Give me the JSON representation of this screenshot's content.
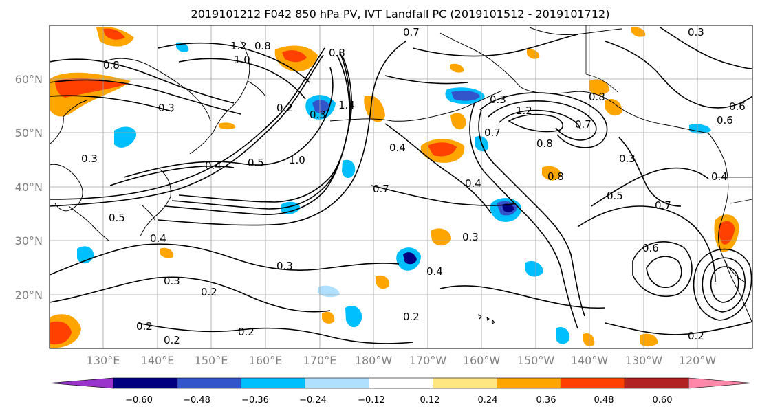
{
  "title": "2019101212 F042 850 hPa PV, IVT Landfall PC (2019101512 - 2019101712)",
  "map": {
    "lat_labels": [
      "60°N",
      "50°N",
      "40°N",
      "30°N",
      "20°N"
    ],
    "lon_labels": [
      "130°E",
      "140°E",
      "150°E",
      "160°E",
      "170°E",
      "180°W",
      "170°W",
      "160°W",
      "150°W",
      "140°W",
      "130°W",
      "120°W"
    ],
    "contour_labels": [
      "1.2",
      "0.8",
      "1.0",
      "0.8",
      "0.7",
      "0.3",
      "0.8",
      "0.2",
      "1.4",
      "0.3",
      "0.3",
      "0.4",
      "0.5",
      "1.0",
      "0.4",
      "0.7",
      "0.4",
      "0.7",
      "0.3",
      "1.2",
      "0.8",
      "0.7",
      "0.8",
      "0.8",
      "0.3",
      "0.5",
      "0.7",
      "0.6",
      "0.4",
      "0.3",
      "0.4",
      "0.3",
      "0.2",
      "0.2",
      "0.2",
      "0.2",
      "0.3",
      "0.5",
      "0.6",
      "0.2",
      "0.2",
      "0.3",
      "0.6",
      "0.4"
    ],
    "colors": {
      "land": "#000000",
      "grid": "#a0a0a0",
      "contour": "#000000"
    }
  },
  "colorbar": {
    "bins": [
      {
        "color": "#9933cc"
      },
      {
        "color": "#000080"
      },
      {
        "color": "#3355cc"
      },
      {
        "color": "#00bfff"
      },
      {
        "color": "#b0e0ff"
      },
      {
        "color": "#ffffff"
      },
      {
        "color": "#ffe680"
      },
      {
        "color": "#ffa500"
      },
      {
        "color": "#ff4000"
      },
      {
        "color": "#b22222"
      },
      {
        "color": "#ff88aa"
      }
    ],
    "tick_labels": [
      "−0.60",
      "−0.48",
      "−0.36",
      "−0.24",
      "−0.12",
      "0.12",
      "0.24",
      "0.36",
      "0.48",
      "0.60"
    ]
  }
}
